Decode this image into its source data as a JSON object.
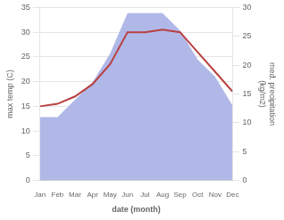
{
  "chart_data": {
    "type": "line",
    "xlabel": "date (month)",
    "ylabel": "max temp (C)",
    "y2label": "med. precipitation\n(kg/m2)",
    "categories": [
      "Jan",
      "Feb",
      "Mar",
      "Apr",
      "May",
      "Jun",
      "Jul",
      "Aug",
      "Sep",
      "Oct",
      "Nov",
      "Dec"
    ],
    "series": [
      {
        "type": "area",
        "color": "#b0b8e8",
        "axis": "y2",
        "values": [
          11,
          11,
          14,
          17,
          22,
          29,
          29,
          29,
          26,
          21,
          18,
          13
        ]
      },
      {
        "type": "line",
        "color": "#b84040",
        "values": [
          15.0,
          15.5,
          17.0,
          19.5,
          23.5,
          30.0,
          30.0,
          30.5,
          30.0,
          26.0,
          22.0,
          18.0
        ]
      }
    ],
    "ylim": [
      0,
      35
    ],
    "yticks": [
      0,
      5,
      10,
      15,
      20,
      25,
      30,
      35
    ],
    "y2lim": [
      0,
      30
    ],
    "y2ticks": [
      0,
      5,
      10,
      15,
      20,
      25,
      30
    ],
    "grid": true
  }
}
